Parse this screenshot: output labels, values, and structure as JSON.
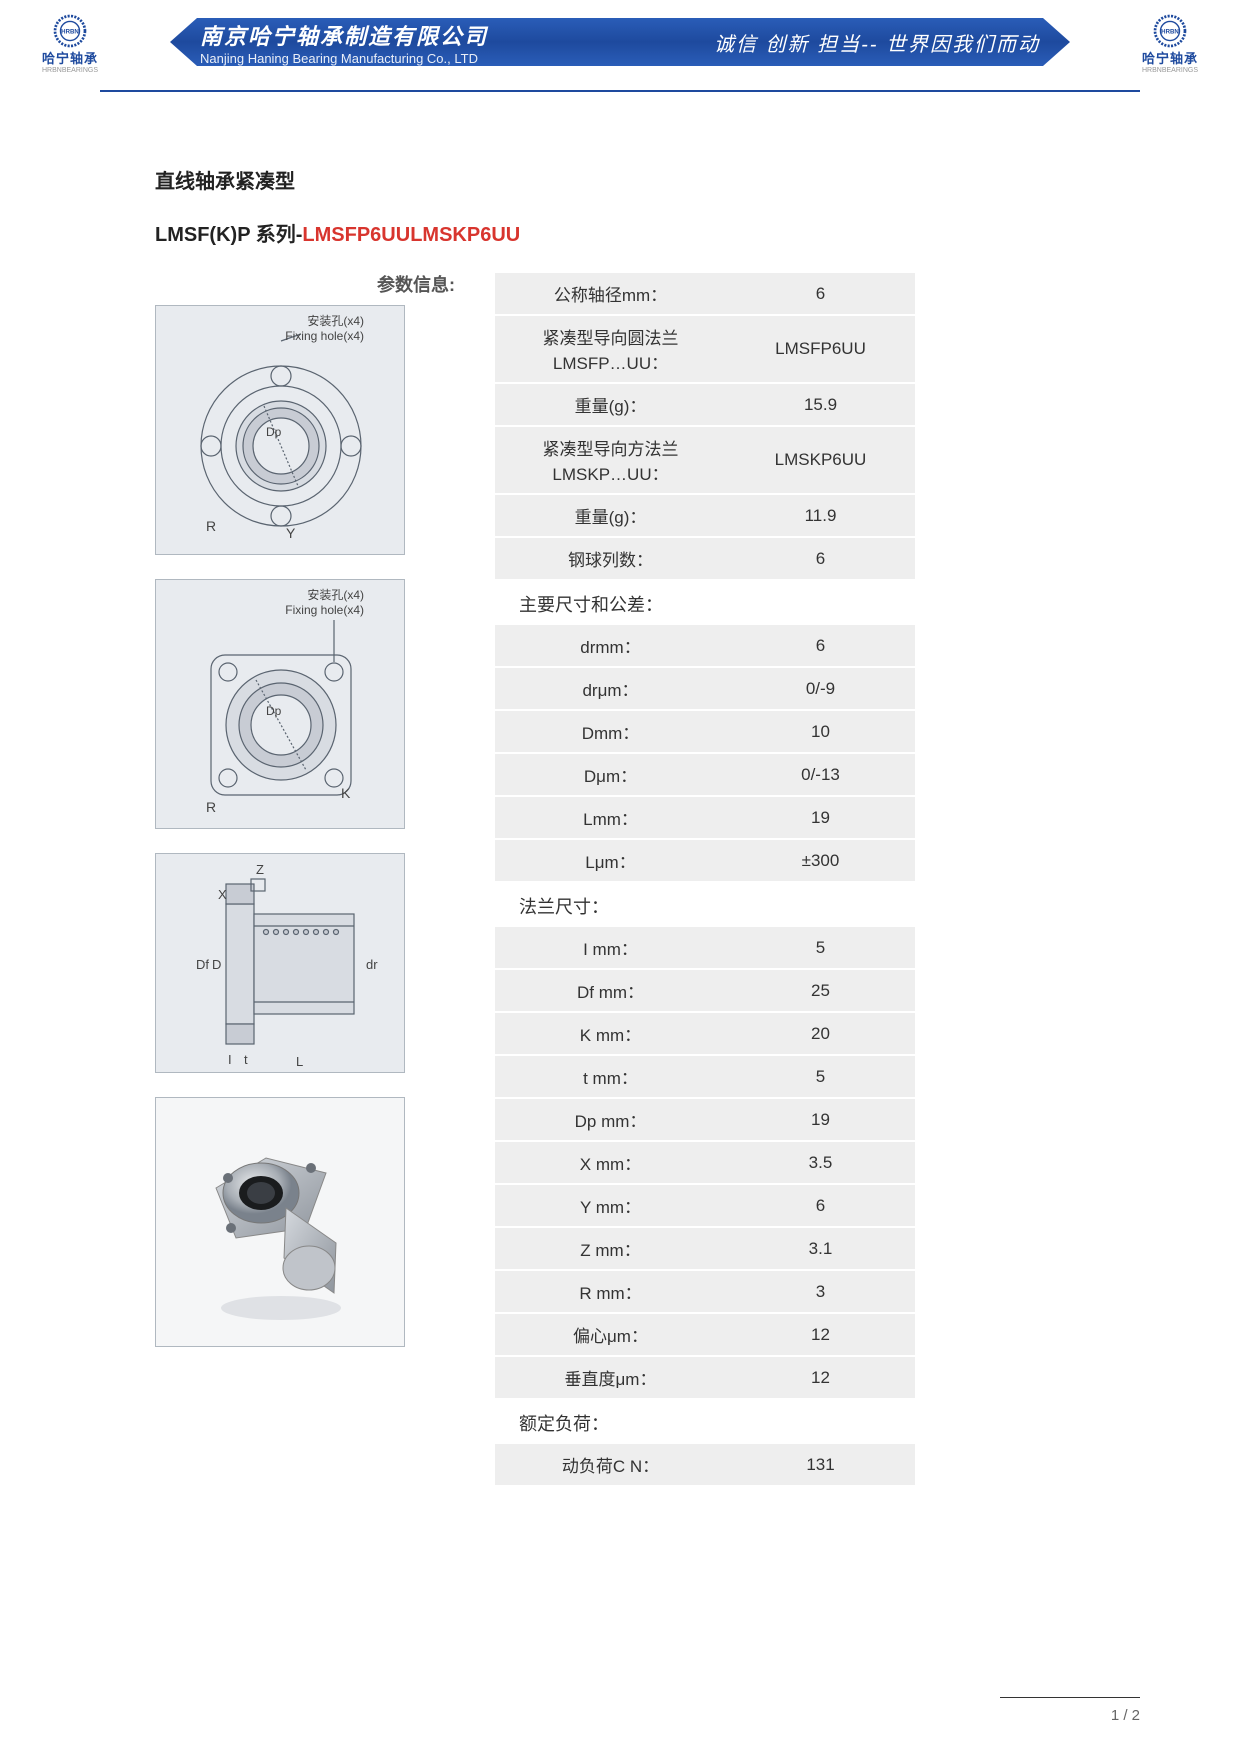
{
  "header": {
    "company_cn": "南京哈宁轴承制造有限公司",
    "company_en": "Nanjing Haning Bearing Manufacturing Co., LTD",
    "slogan": "诚信 创新 担当-- 世界因我们而动",
    "logo_gear": "HRBN",
    "logo_text": "哈宁轴承",
    "logo_sub": "HRBNBEARINGS"
  },
  "titles": {
    "t1": "直线轴承紧凑型",
    "t2_prefix": "LMSF(K)P 系列-",
    "t2_red": "LMSFP6UULMSKP6UU",
    "param_info": "参数信息:"
  },
  "diagrams": {
    "fixing_cn": "安装孔(x4)",
    "fixing_en": "Fixing hole(x4)",
    "labels": {
      "R": "R",
      "Y": "Y",
      "K": "K",
      "Dp": "Dp",
      "Df": "Df",
      "D": "D",
      "dr": "dr",
      "L": "L",
      "I": "I",
      "t": "t",
      "Z": "Z",
      "X": "X"
    }
  },
  "spec": {
    "main": [
      {
        "label": "公称轴径mm：",
        "value": "6"
      },
      {
        "label": "紧凑型导向圆法兰LMSFP…UU：",
        "value": "LMSFP6UU"
      },
      {
        "label": "重量(g)：",
        "value": "15.9"
      },
      {
        "label": "紧凑型导向方法兰LMSKP…UU：",
        "value": "LMSKP6UU"
      },
      {
        "label": "重量(g)：",
        "value": "11.9"
      },
      {
        "label": "钢球列数：",
        "value": "6"
      }
    ],
    "sect1": "主要尺寸和公差：",
    "dims": [
      {
        "label": "drmm：",
        "value": "6"
      },
      {
        "label": "drμm：",
        "value": "0/-9"
      },
      {
        "label": "Dmm：",
        "value": "10"
      },
      {
        "label": "Dμm：",
        "value": "0/-13"
      },
      {
        "label": "Lmm：",
        "value": "19"
      },
      {
        "label": "Lμm：",
        "value": "±300"
      }
    ],
    "sect2": "法兰尺寸：",
    "flange": [
      {
        "label": "I mm：",
        "value": "5"
      },
      {
        "label": "Df mm：",
        "value": "25"
      },
      {
        "label": "K mm：",
        "value": "20"
      },
      {
        "label": "t mm：",
        "value": "5"
      },
      {
        "label": "Dp mm：",
        "value": "19"
      },
      {
        "label": "X mm：",
        "value": "3.5"
      },
      {
        "label": "Y mm：",
        "value": "6"
      },
      {
        "label": "Z mm：",
        "value": "3.1"
      },
      {
        "label": "R mm：",
        "value": "3"
      },
      {
        "label": "偏心μm：",
        "value": "12"
      },
      {
        "label": "垂直度μm：",
        "value": "12"
      }
    ],
    "sect3": "额定负荷：",
    "load": [
      {
        "label": "动负荷C N：",
        "value": "131"
      }
    ]
  },
  "page": "1 / 2",
  "colors": {
    "banner": "#1e4a9e",
    "red": "#d8352e",
    "row_bg": "#eeeeee",
    "diag_bg": "#e8ebef"
  }
}
